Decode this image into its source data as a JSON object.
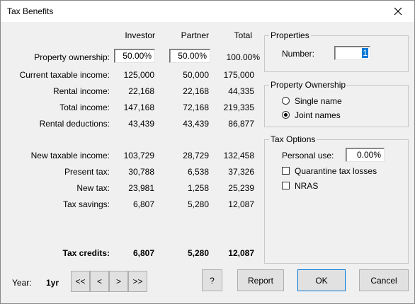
{
  "window": {
    "title": "Tax Benefits",
    "close_icon": "close-icon"
  },
  "columns": {
    "investor": "Investor",
    "partner": "Partner",
    "total": "Total"
  },
  "ownership": {
    "label": "Property ownership:",
    "investor": "50.00%",
    "partner": "50.00%",
    "total": "100.00%"
  },
  "rows": [
    {
      "label": "Current taxable income:",
      "investor": "125,000",
      "partner": "50,000",
      "total": "175,000"
    },
    {
      "label": "Rental income:",
      "investor": "22,168",
      "partner": "22,168",
      "total": "44,335"
    },
    {
      "label": "Total income:",
      "investor": "147,168",
      "partner": "72,168",
      "total": "219,335"
    },
    {
      "label": "Rental deductions:",
      "investor": "43,439",
      "partner": "43,439",
      "total": "86,877"
    },
    {
      "label": "New taxable income:",
      "investor": "103,729",
      "partner": "28,729",
      "total": "132,458"
    },
    {
      "label": "Present tax:",
      "investor": "30,788",
      "partner": "6,538",
      "total": "37,326"
    },
    {
      "label": "New tax:",
      "investor": "23,981",
      "partner": "1,258",
      "total": "25,239"
    },
    {
      "label": "Tax savings:",
      "investor": "6,807",
      "partner": "5,280",
      "total": "12,087"
    }
  ],
  "credits": {
    "label": "Tax credits:",
    "investor": "6,807",
    "partner": "5,280",
    "total": "12,087"
  },
  "properties": {
    "title": "Properties",
    "number_label": "Number:",
    "number_value": "1"
  },
  "property_ownership": {
    "title": "Property Ownership",
    "single": "Single name",
    "joint": "Joint names",
    "selected": "joint"
  },
  "tax_options": {
    "title": "Tax Options",
    "personal_use_label": "Personal use:",
    "personal_use_value": "0.00%",
    "quarantine": "Quarantine tax losses",
    "quarantine_checked": false,
    "nras": "NRAS",
    "nras_checked": false
  },
  "footer": {
    "year_label": "Year:",
    "year_value": "1yr",
    "first": "<<",
    "prev": "<",
    "next": ">",
    "last": ">>",
    "help": "?",
    "report": "Report",
    "ok": "OK",
    "cancel": "Cancel"
  }
}
